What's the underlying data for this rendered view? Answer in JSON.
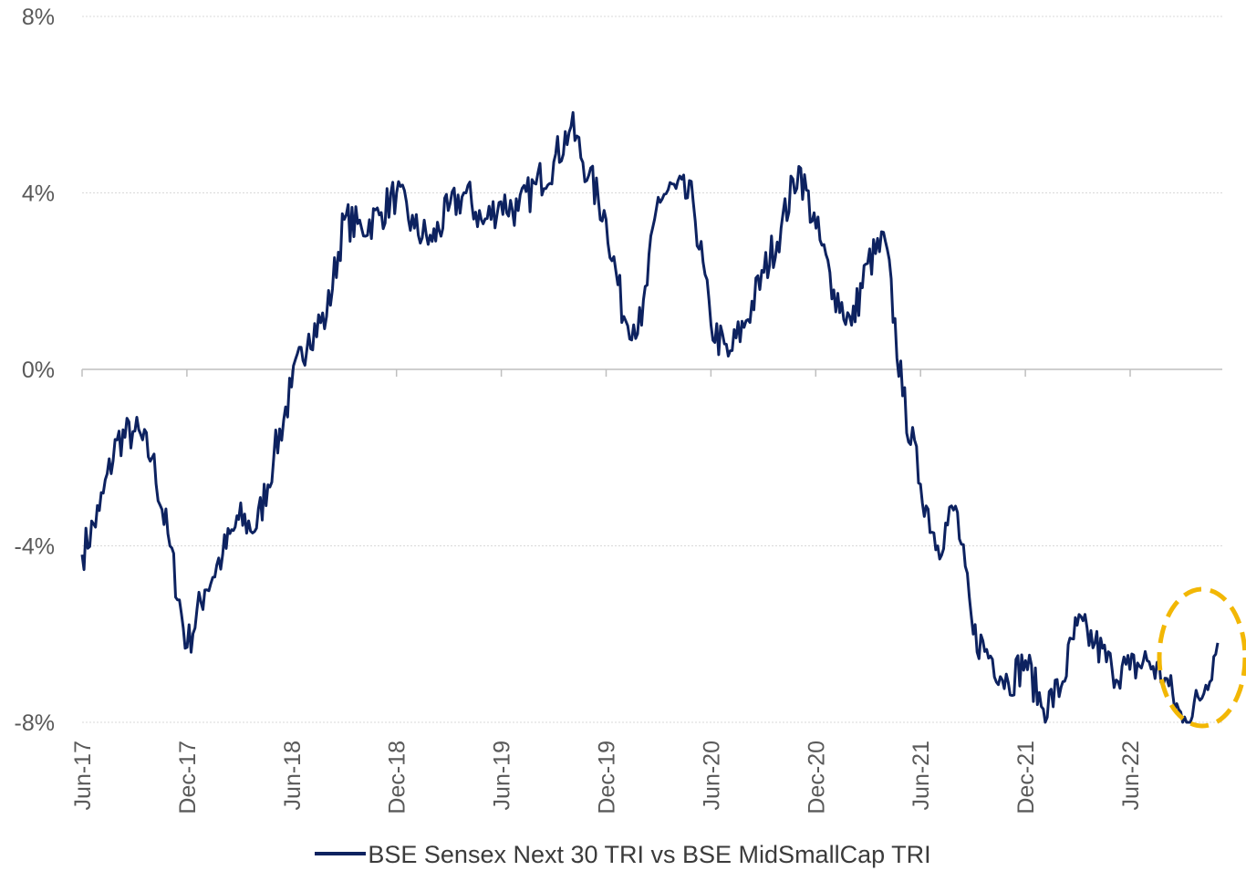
{
  "chart_data": {
    "type": "line",
    "title": "",
    "xlabel": "",
    "ylabel": "",
    "ylim": [
      -8,
      8
    ],
    "y_ticks": [
      -8,
      -4,
      0,
      4,
      8
    ],
    "y_tick_labels": [
      "-8%",
      "-4%",
      "0%",
      "4%",
      "8%"
    ],
    "x_tick_labels": [
      "Jun-17",
      "Dec-17",
      "Jun-18",
      "Dec-18",
      "Jun-19",
      "Dec-19",
      "Jun-20",
      "Dec-20",
      "Jun-21",
      "Dec-21",
      "Jun-22"
    ],
    "grid": "horizontal",
    "legend_position": "bottom",
    "line_color": "#0d2260",
    "highlight_color": "#f2b705",
    "series": [
      {
        "name": "BSE Sensex Next 30 TRI vs BSE MidSmallCap TRI",
        "x": [
          "2017-06-01",
          "2017-07-01",
          "2017-08-01",
          "2017-09-01",
          "2017-10-01",
          "2017-11-01",
          "2017-12-01",
          "2018-01-01",
          "2018-02-01",
          "2018-03-01",
          "2018-04-01",
          "2018-05-01",
          "2018-06-01",
          "2018-07-01",
          "2018-08-01",
          "2018-09-01",
          "2018-10-01",
          "2018-11-01",
          "2018-12-01",
          "2019-01-01",
          "2019-02-01",
          "2019-03-01",
          "2019-04-01",
          "2019-05-01",
          "2019-06-01",
          "2019-07-01",
          "2019-08-01",
          "2019-09-01",
          "2019-10-01",
          "2019-11-01",
          "2019-12-01",
          "2020-01-01",
          "2020-02-01",
          "2020-03-01",
          "2020-04-01",
          "2020-05-01",
          "2020-06-01",
          "2020-07-01",
          "2020-08-01",
          "2020-09-01",
          "2020-10-01",
          "2020-11-01",
          "2020-12-01",
          "2021-01-01",
          "2021-02-01",
          "2021-03-01",
          "2021-04-01",
          "2021-05-01",
          "2021-06-01",
          "2021-07-01",
          "2021-08-01",
          "2021-09-01",
          "2021-10-01",
          "2021-11-01",
          "2021-12-01",
          "2022-01-01",
          "2022-02-01",
          "2022-03-01",
          "2022-04-01",
          "2022-05-01",
          "2022-06-01",
          "2022-07-01",
          "2022-08-01",
          "2022-09-01",
          "2022-10-01",
          "2022-11-01"
        ],
        "values": [
          -4.2,
          -3.2,
          -1.6,
          -1.4,
          -2.0,
          -4.0,
          -6.3,
          -5.0,
          -4.2,
          -3.4,
          -3.6,
          -2.0,
          -0.4,
          0.8,
          1.2,
          3.4,
          3.2,
          3.5,
          4.0,
          3.2,
          2.9,
          3.6,
          4.0,
          3.3,
          3.8,
          3.6,
          4.2,
          4.7,
          5.5,
          4.4,
          3.4,
          1.2,
          1.0,
          3.9,
          4.1,
          3.8,
          1.0,
          0.3,
          1.1,
          2.2,
          3.2,
          4.6,
          3.2,
          1.8,
          1.0,
          2.4,
          2.9,
          -0.6,
          -2.6,
          -4.0,
          -3.1,
          -6.0,
          -6.5,
          -7.1,
          -6.6,
          -7.7,
          -7.2,
          -5.8,
          -6.2,
          -6.8,
          -6.8,
          -6.6,
          -7.0,
          -8.0,
          -7.5,
          -6.2
        ]
      }
    ]
  }
}
